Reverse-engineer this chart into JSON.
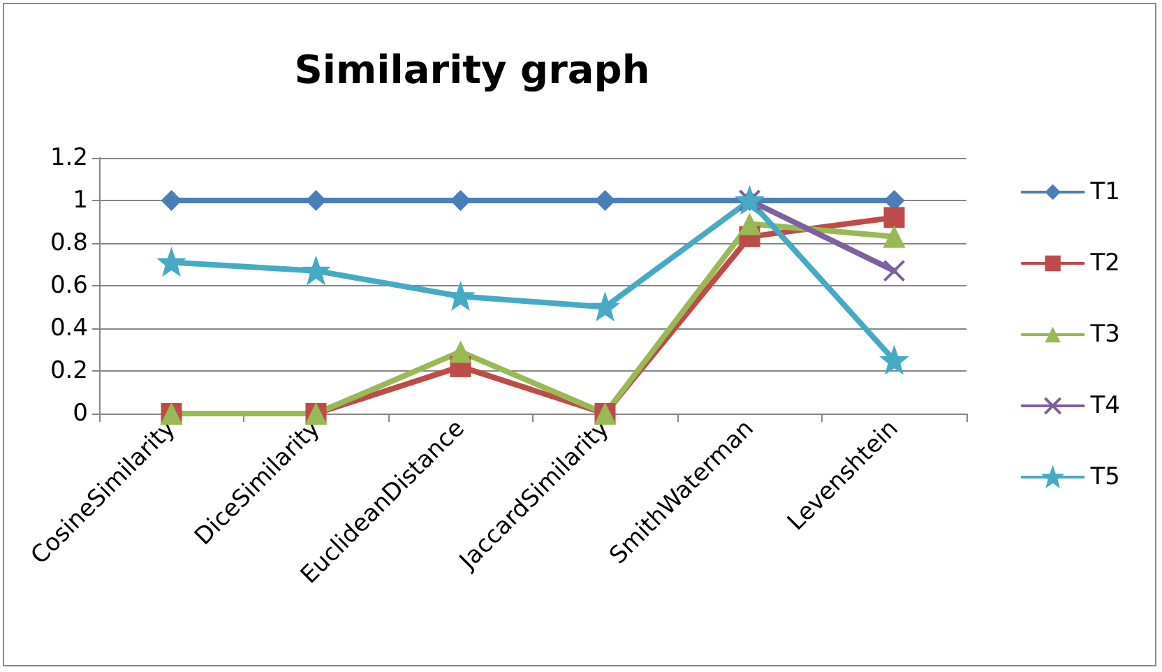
{
  "chart_data": {
    "type": "line",
    "title": "Similarity graph",
    "categories": [
      "CosineSimilarity",
      "DiceSimilarity",
      "EuclideanDistance",
      "JaccardSimilarity",
      "SmithWaterman",
      "Levenshtein"
    ],
    "series": [
      {
        "name": "T1",
        "color": "#4a7ebb",
        "marker": "diamond",
        "values": [
          1,
          1,
          1,
          1,
          1,
          1
        ]
      },
      {
        "name": "T2",
        "color": "#be4b48",
        "marker": "square",
        "values": [
          0,
          0,
          0.22,
          0,
          0.83,
          0.92
        ]
      },
      {
        "name": "T3",
        "color": "#98b954",
        "marker": "triangle",
        "values": [
          0,
          0,
          0.29,
          0,
          0.89,
          0.83
        ]
      },
      {
        "name": "T4",
        "color": "#7d60a0",
        "marker": "cross",
        "values": [
          null,
          null,
          null,
          null,
          1,
          0.67
        ]
      },
      {
        "name": "T5",
        "color": "#46aac5",
        "marker": "star",
        "values": [
          0.71,
          0.67,
          0.55,
          0.5,
          1,
          0.25
        ]
      }
    ],
    "ylim": [
      0,
      1.2
    ],
    "yticks": [
      0,
      0.2,
      0.4,
      0.6,
      0.8,
      1,
      1.2
    ],
    "grid": "y",
    "legend": "right"
  }
}
